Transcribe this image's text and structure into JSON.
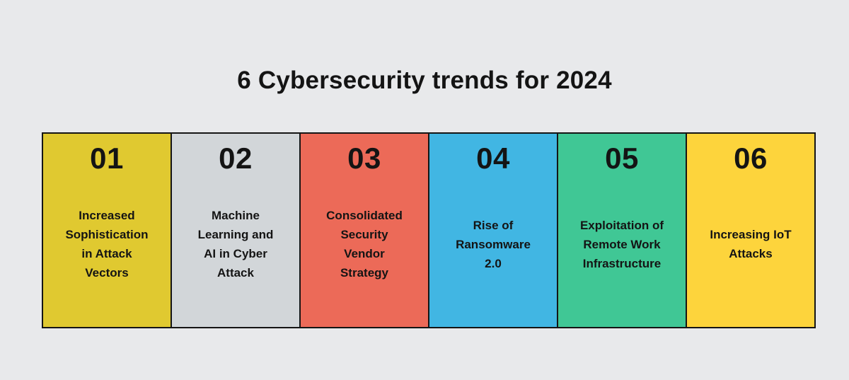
{
  "title": "6 Cybersecurity trends for 2024",
  "colors": {
    "background": "#e8e9eb",
    "border": "#151515",
    "text": "#141414"
  },
  "panels": [
    {
      "number": "01",
      "label_lines": [
        "Increased",
        "Sophistication",
        "in Attack",
        "Vectors"
      ],
      "color": "#e0c930"
    },
    {
      "number": "02",
      "label_lines": [
        "Machine",
        "Learning and",
        "AI in Cyber",
        "Attack"
      ],
      "color": "#d2d6d9"
    },
    {
      "number": "03",
      "label_lines": [
        "Consolidated",
        "Security",
        "Vendor",
        "Strategy"
      ],
      "color": "#ec6a58"
    },
    {
      "number": "04",
      "label_lines": [
        "Rise of",
        "Ransomware",
        "2.0"
      ],
      "color": "#41b6e3"
    },
    {
      "number": "05",
      "label_lines": [
        "Exploitation of",
        "Remote Work",
        "Infrastructure"
      ],
      "color": "#40c795"
    },
    {
      "number": "06",
      "label_lines": [
        "Increasing IoT",
        "Attacks"
      ],
      "color": "#fdd43c"
    }
  ]
}
